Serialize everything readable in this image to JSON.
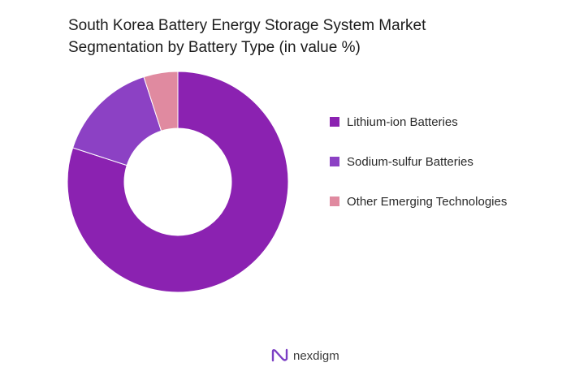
{
  "chart_data": {
    "type": "pie",
    "donut": true,
    "title": "South Korea Battery Energy Storage System Market Segmentation by Battery Type (in value %)",
    "title_lines": [
      "South Korea Battery Energy Storage System Market",
      "Segmentation by Battery Type (in value %)"
    ],
    "categories": [
      "Lithium-ion Batteries",
      "Sodium-sulfur Batteries",
      "Other Emerging Technologies"
    ],
    "values": [
      80,
      15,
      5
    ],
    "colors": [
      "#8b22b1",
      "#8c41c4",
      "#e08aa0"
    ],
    "legend_position": "right"
  },
  "brand": {
    "name": "nexdigm",
    "logo_icon": "nexdigm-logo-icon"
  }
}
